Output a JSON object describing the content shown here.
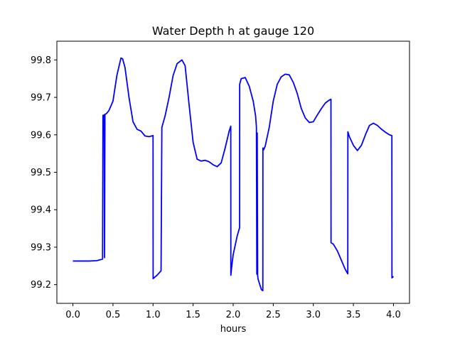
{
  "chart_data": {
    "type": "line",
    "title": "Water Depth h at gauge 120",
    "xlabel": "hours",
    "ylabel": "",
    "xlim": [
      -0.2,
      4.2
    ],
    "ylim": [
      99.15,
      99.85
    ],
    "xticks": [
      0.0,
      0.5,
      1.0,
      1.5,
      2.0,
      2.5,
      3.0,
      3.5,
      4.0
    ],
    "xtick_labels": [
      "0.0",
      "0.5",
      "1.0",
      "1.5",
      "2.0",
      "2.5",
      "3.0",
      "3.5",
      "4.0"
    ],
    "yticks": [
      99.2,
      99.3,
      99.4,
      99.5,
      99.6,
      99.7,
      99.8
    ],
    "ytick_labels": [
      "99.2",
      "99.3",
      "99.4",
      "99.5",
      "99.6",
      "99.7",
      "99.8"
    ],
    "grid": false,
    "legend": "none",
    "series": [
      {
        "color": "#0000ff",
        "x": [
          0.0,
          0.1,
          0.2,
          0.3,
          0.37,
          0.375,
          0.39,
          0.395,
          0.4,
          0.405,
          0.42,
          0.45,
          0.5,
          0.55,
          0.6,
          0.62,
          0.65,
          0.7,
          0.75,
          0.8,
          0.85,
          0.9,
          0.95,
          1.0,
          1.001,
          1.05,
          1.1,
          1.11,
          1.15,
          1.2,
          1.25,
          1.3,
          1.36,
          1.4,
          1.45,
          1.5,
          1.55,
          1.6,
          1.65,
          1.7,
          1.75,
          1.8,
          1.85,
          1.9,
          1.95,
          1.97,
          1.971,
          1.98,
          2.0,
          2.05,
          2.08,
          2.081,
          2.1,
          2.15,
          2.2,
          2.25,
          2.28,
          2.29,
          2.295,
          2.3,
          2.305,
          2.31,
          2.35,
          2.36,
          2.37,
          2.371,
          2.38,
          2.4,
          2.45,
          2.5,
          2.55,
          2.6,
          2.65,
          2.7,
          2.75,
          2.8,
          2.85,
          2.9,
          2.95,
          3.0,
          3.05,
          3.1,
          3.15,
          3.2,
          3.22,
          3.221,
          3.25,
          3.3,
          3.35,
          3.4,
          3.43,
          3.431,
          3.45,
          3.5,
          3.55,
          3.6,
          3.65,
          3.7,
          3.75,
          3.8,
          3.85,
          3.9,
          3.95,
          3.98,
          3.981,
          4.0
        ],
        "y": [
          99.263,
          99.263,
          99.263,
          99.264,
          99.268,
          99.652,
          99.653,
          99.272,
          99.655,
          99.655,
          99.657,
          99.665,
          99.69,
          99.76,
          99.805,
          99.803,
          99.78,
          99.7,
          99.635,
          99.615,
          99.61,
          99.597,
          99.595,
          99.598,
          99.216,
          99.225,
          99.237,
          99.62,
          99.65,
          99.7,
          99.758,
          99.79,
          99.8,
          99.785,
          99.68,
          99.58,
          99.535,
          99.53,
          99.532,
          99.528,
          99.52,
          99.515,
          99.525,
          99.565,
          99.61,
          99.623,
          99.225,
          99.245,
          99.28,
          99.33,
          99.352,
          99.735,
          99.75,
          99.753,
          99.73,
          99.69,
          99.65,
          99.62,
          99.228,
          99.605,
          99.226,
          99.215,
          99.188,
          99.185,
          99.184,
          99.565,
          99.56,
          99.57,
          99.62,
          99.69,
          99.735,
          99.755,
          99.762,
          99.76,
          99.74,
          99.71,
          99.67,
          99.645,
          99.633,
          99.635,
          99.653,
          99.67,
          99.685,
          99.693,
          99.695,
          99.312,
          99.308,
          99.29,
          99.265,
          99.24,
          99.229,
          99.608,
          99.595,
          99.572,
          99.558,
          99.572,
          99.6,
          99.625,
          99.631,
          99.625,
          99.615,
          99.607,
          99.6,
          99.598,
          99.218,
          99.222
        ]
      }
    ]
  }
}
